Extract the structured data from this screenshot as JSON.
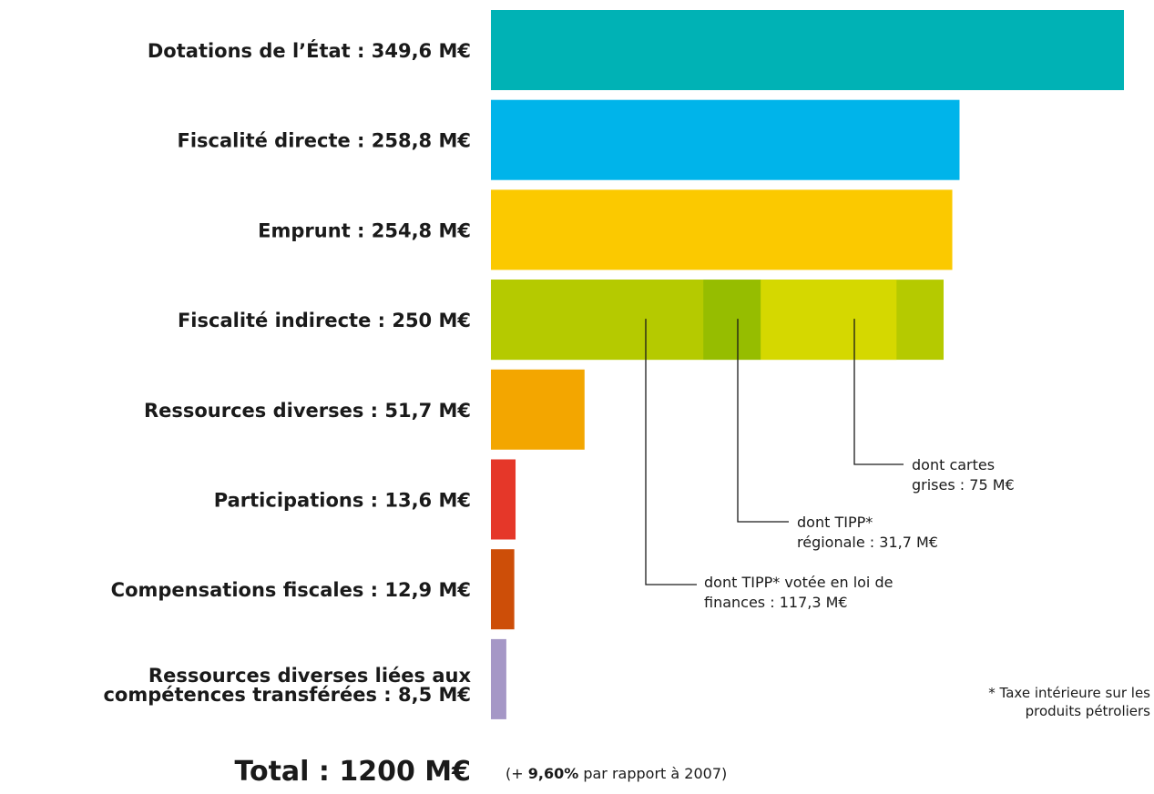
{
  "chart_data": {
    "type": "bar",
    "orientation": "horizontal",
    "categories": [
      "Dotations de l’État : 349,6 M€",
      "Fiscalité directe : 258,8 M€",
      "Emprunt : 254,8 M€",
      "Fiscalité indirecte : 250 M€",
      "Ressources diverses : 51,7 M€",
      "Participations : 13,6 M€",
      "Compensations fiscales : 12,9 M€",
      "Ressources diverses liées aux compétences transférées : 8,5 M€"
    ],
    "values": [
      349.6,
      258.8,
      254.8,
      250,
      51.7,
      13.6,
      12.9,
      8.5
    ],
    "colors": [
      "#00b2b5",
      "#00b4ea",
      "#fbc900",
      "#b5ca00",
      "#f3a600",
      "#e53729",
      "#cd4e08",
      "#a597c6"
    ],
    "breakdown": {
      "category_index": 3,
      "segments": [
        {
          "label": "dont TIPP* votée en loi de finances : 117,3 M€",
          "value": 117.3,
          "color": "#b5ca00"
        },
        {
          "label": "dont TIPP* régionale : 31,7 M€",
          "value": 31.7,
          "color": "#96bd00"
        },
        {
          "label": "dont cartes grises : 75 M€",
          "value": 75,
          "color": "#d5d800"
        }
      ]
    },
    "footnote": "* Taxe intérieure sur les produits pétroliers",
    "total_label": "Total : 1200 M€",
    "total_note_prefix": "(+ ",
    "total_note_bold": "9,60%",
    "total_note_suffix": " par rapport à 2007)",
    "grid": false,
    "legend": "none"
  }
}
